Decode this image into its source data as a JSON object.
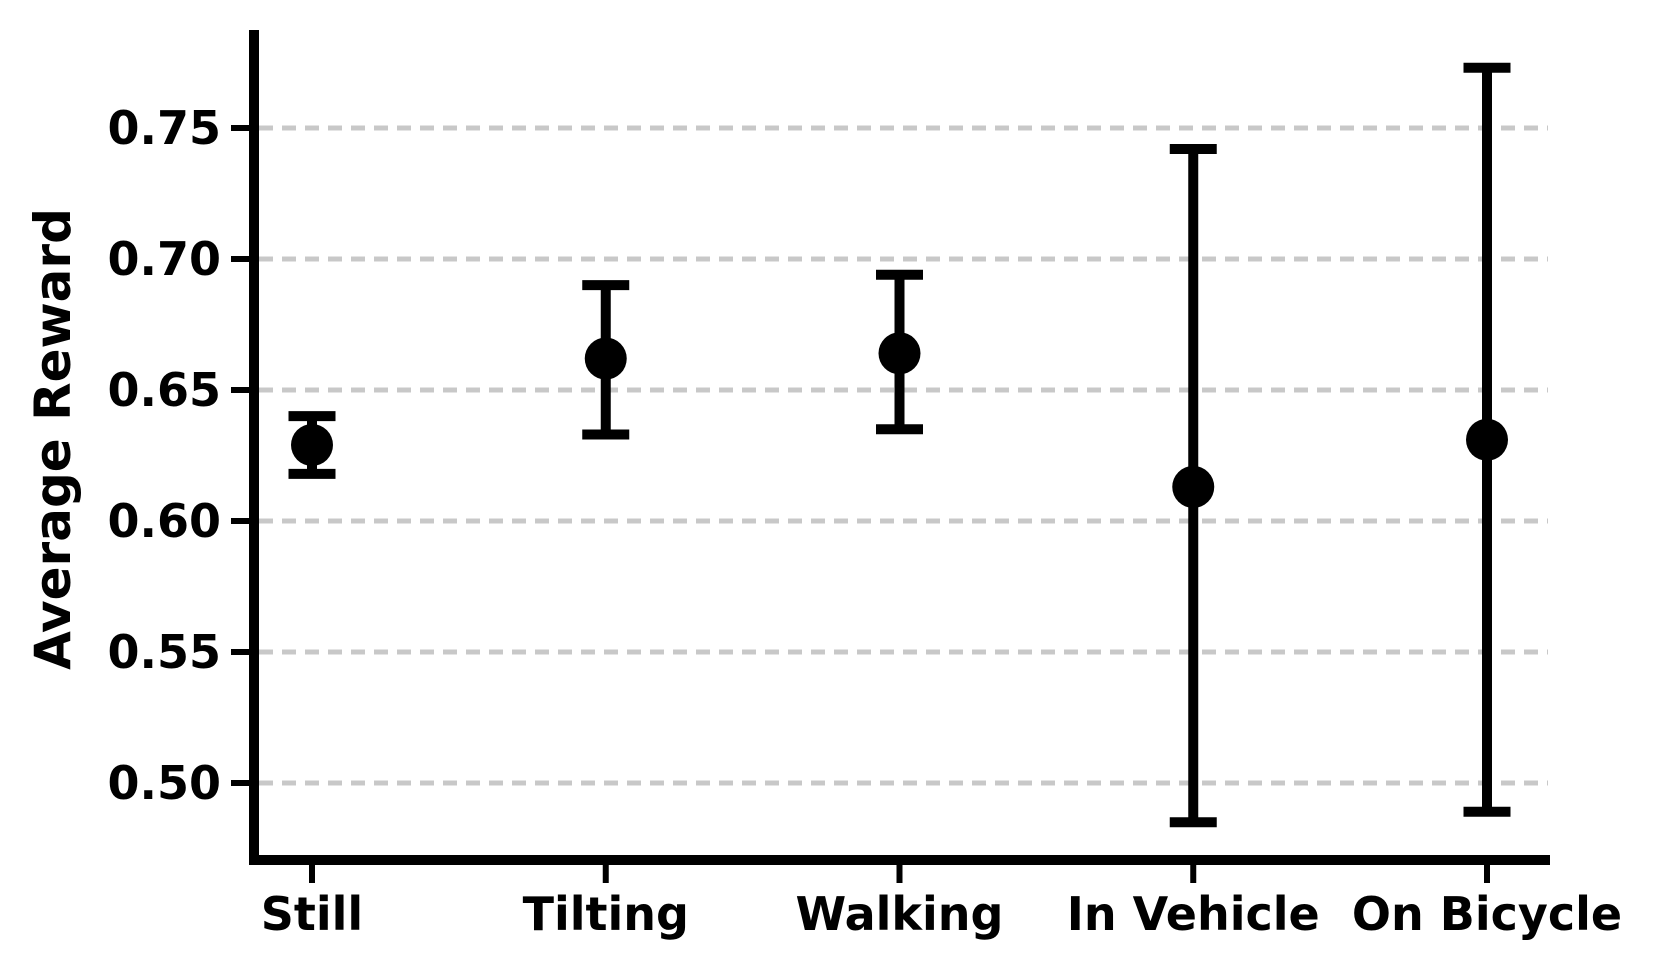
{
  "figure": {
    "background": "#ffffff",
    "title": ""
  },
  "chart_data": {
    "type": "scatter",
    "variant": "point-with-error-bars",
    "title": "",
    "xlabel": "",
    "ylabel": "Average Reward",
    "categories": [
      "Still",
      "Tilting",
      "Walking",
      "In Vehicle",
      "On Bicycle"
    ],
    "series": [
      {
        "name": "Average Reward",
        "means": [
          0.629,
          0.662,
          0.664,
          0.613,
          0.631
        ],
        "error_low": [
          0.618,
          0.633,
          0.635,
          0.485,
          0.489
        ],
        "error_high": [
          0.64,
          0.69,
          0.694,
          0.742,
          0.773
        ]
      }
    ],
    "ylim": [
      0.4706,
      0.7874
    ],
    "yticks": [
      0.5,
      0.55,
      0.6,
      0.65,
      0.7,
      0.75
    ],
    "ytick_labels": [
      "0.50",
      "0.55",
      "0.60",
      "0.65",
      "0.70",
      "0.75"
    ],
    "grid": {
      "horizontal": true,
      "vertical": false,
      "style": "dashed"
    },
    "legend": "none",
    "colors": {
      "points": "#000000",
      "error_bars": "#000000",
      "grid": "#c8c8c8",
      "axes": "#000000",
      "background": "#ffffff"
    }
  }
}
